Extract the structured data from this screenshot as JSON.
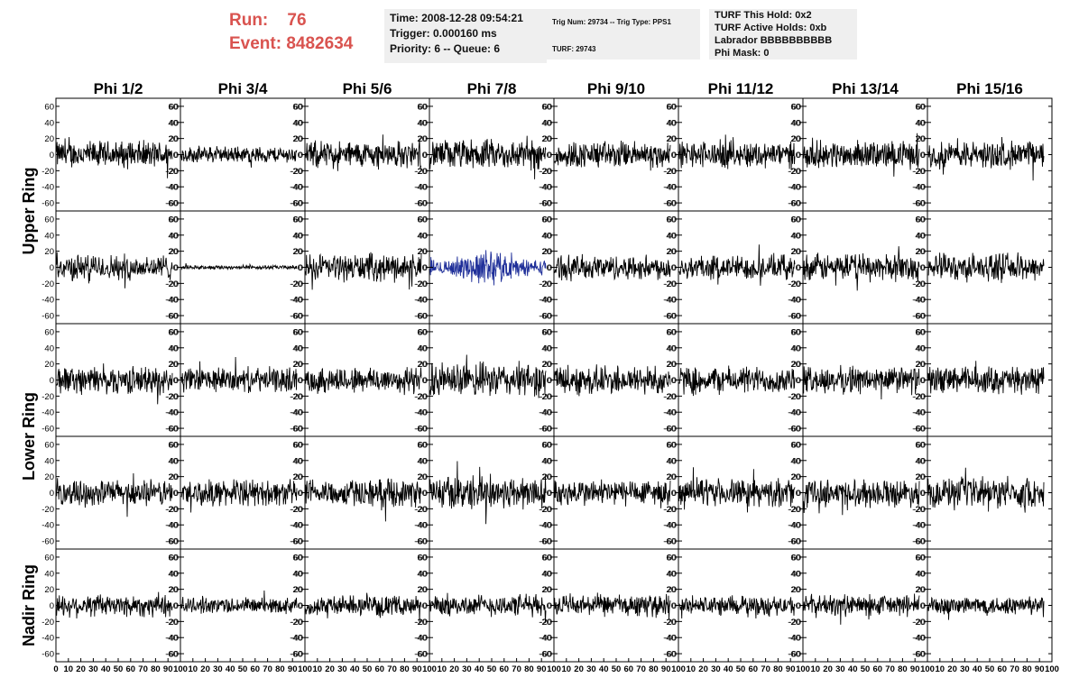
{
  "header": {
    "run_label": "Run:",
    "run_value": "76",
    "event_label": "Event:",
    "event_value": "8482634",
    "time": "Time: 2008-12-28 09:54:21",
    "trigger": "Trigger: 0.000160 ms",
    "priority": "Priority: 6 -- Queue: 6",
    "trig_num": "Trig Num: 29734 -- Trig Type: PPS1",
    "turf": "TURF: 29743",
    "turf_this_hold": "TURF This Hold: 0x2",
    "turf_active_holds": "TURF Active Holds: 0xb",
    "labrador": "Labrador BBBBBBBBBB",
    "phi_mask": "Phi Mask: 0"
  },
  "colors": {
    "header_red": "#d9534f",
    "info_bg": "#efefef",
    "trace": "#000000",
    "highlight_trace": "#1f2f99"
  },
  "chart_data": {
    "type": "line",
    "columns": [
      "Phi 1/2",
      "Phi 3/4",
      "Phi 5/6",
      "Phi 7/8",
      "Phi 9/10",
      "Phi 11/12",
      "Phi 13/14",
      "Phi 15/16"
    ],
    "row_labels": [
      "Upper Ring",
      "Lower Ring",
      "Nadir Ring"
    ],
    "ylim": [
      -70,
      70
    ],
    "yticks": [
      -60,
      -40,
      -20,
      0,
      20,
      40,
      60
    ],
    "xlim": [
      0,
      100
    ],
    "xticks": [
      0,
      10,
      20,
      30,
      40,
      50,
      60,
      70,
      80,
      90,
      100
    ],
    "samples_per_trace": 260,
    "highlighted_panel": {
      "row": 1,
      "col": 3
    },
    "panel_amplitude": [
      [
        20,
        12,
        20,
        22,
        20,
        20,
        20,
        20
      ],
      [
        19,
        3,
        20,
        18,
        18,
        18,
        20,
        20
      ],
      [
        20,
        18,
        20,
        25,
        22,
        20,
        20,
        20
      ],
      [
        19,
        19,
        20,
        25,
        20,
        20,
        20,
        22
      ],
      [
        17,
        12,
        14,
        16,
        16,
        14,
        16,
        14
      ]
    ]
  }
}
